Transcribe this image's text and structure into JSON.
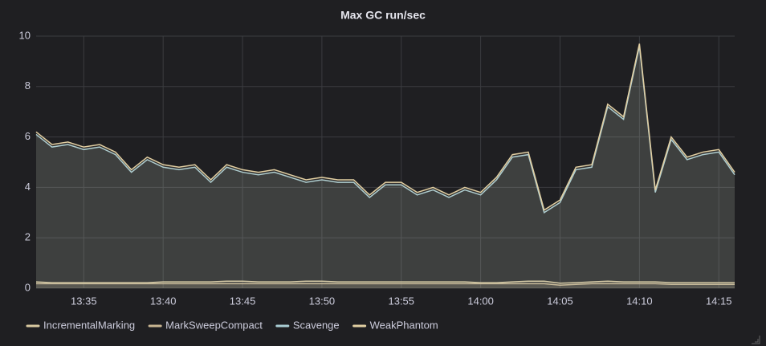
{
  "chart_data": {
    "type": "line",
    "title": "Max GC run/sec",
    "x": [
      "13:32",
      "13:33",
      "13:34",
      "13:35",
      "13:36",
      "13:37",
      "13:38",
      "13:39",
      "13:40",
      "13:41",
      "13:42",
      "13:43",
      "13:44",
      "13:45",
      "13:46",
      "13:47",
      "13:48",
      "13:49",
      "13:50",
      "13:51",
      "13:52",
      "13:53",
      "13:54",
      "13:55",
      "13:56",
      "13:57",
      "13:58",
      "13:59",
      "14:00",
      "14:01",
      "14:02",
      "14:03",
      "14:04",
      "14:05",
      "14:06",
      "14:07",
      "14:08",
      "14:09",
      "14:10",
      "14:11",
      "14:12",
      "14:13",
      "14:14",
      "14:15",
      "14:16"
    ],
    "series": [
      {
        "name": "IncrementalMarking",
        "color": "#d8c9a0",
        "values": [
          0.25,
          0.22,
          0.22,
          0.22,
          0.22,
          0.22,
          0.22,
          0.22,
          0.25,
          0.25,
          0.25,
          0.25,
          0.28,
          0.28,
          0.25,
          0.25,
          0.25,
          0.28,
          0.28,
          0.25,
          0.25,
          0.25,
          0.25,
          0.25,
          0.25,
          0.25,
          0.25,
          0.25,
          0.22,
          0.22,
          0.25,
          0.28,
          0.28,
          0.2,
          0.22,
          0.25,
          0.28,
          0.25,
          0.25,
          0.25,
          0.22,
          0.22,
          0.22,
          0.22,
          0.22
        ]
      },
      {
        "name": "MarkSweepCompact",
        "color": "#c9b692",
        "values": [
          0.18,
          0.18,
          0.18,
          0.18,
          0.18,
          0.18,
          0.18,
          0.18,
          0.18,
          0.18,
          0.18,
          0.18,
          0.18,
          0.18,
          0.18,
          0.18,
          0.18,
          0.18,
          0.18,
          0.18,
          0.18,
          0.18,
          0.18,
          0.18,
          0.18,
          0.18,
          0.18,
          0.18,
          0.18,
          0.18,
          0.18,
          0.18,
          0.18,
          0.12,
          0.15,
          0.18,
          0.18,
          0.18,
          0.18,
          0.18,
          0.15,
          0.15,
          0.15,
          0.15,
          0.15
        ]
      },
      {
        "name": "Scavenge",
        "color": "#a9cdd4",
        "values": [
          6.1,
          5.6,
          5.7,
          5.5,
          5.6,
          5.3,
          4.6,
          5.1,
          4.8,
          4.7,
          4.8,
          4.2,
          4.8,
          4.6,
          4.5,
          4.6,
          4.4,
          4.2,
          4.3,
          4.2,
          4.2,
          3.6,
          4.1,
          4.1,
          3.7,
          3.9,
          3.6,
          3.9,
          3.7,
          4.3,
          5.2,
          5.3,
          3.0,
          3.4,
          4.7,
          4.8,
          7.2,
          6.7,
          9.6,
          3.8,
          5.9,
          5.1,
          5.3,
          5.4,
          4.5
        ]
      },
      {
        "name": "WeakPhantom",
        "color": "#e2cfa2",
        "values": [
          6.2,
          5.7,
          5.8,
          5.6,
          5.7,
          5.4,
          4.7,
          5.2,
          4.9,
          4.8,
          4.9,
          4.3,
          4.9,
          4.7,
          4.6,
          4.7,
          4.5,
          4.3,
          4.4,
          4.3,
          4.3,
          3.7,
          4.2,
          4.2,
          3.8,
          4.0,
          3.7,
          4.0,
          3.8,
          4.4,
          5.3,
          5.4,
          3.1,
          3.5,
          4.8,
          4.9,
          7.3,
          6.8,
          9.7,
          3.9,
          6.0,
          5.2,
          5.4,
          5.5,
          4.6
        ]
      }
    ],
    "xlim": [
      "13:32",
      "14:16"
    ],
    "xticks": [
      "13:35",
      "13:40",
      "13:45",
      "13:50",
      "13:55",
      "14:00",
      "14:05",
      "14:10",
      "14:15"
    ],
    "ylim": [
      0,
      10
    ],
    "yticks": [
      0,
      2,
      4,
      6,
      8,
      10
    ],
    "grid": true,
    "legend": "bottom"
  }
}
